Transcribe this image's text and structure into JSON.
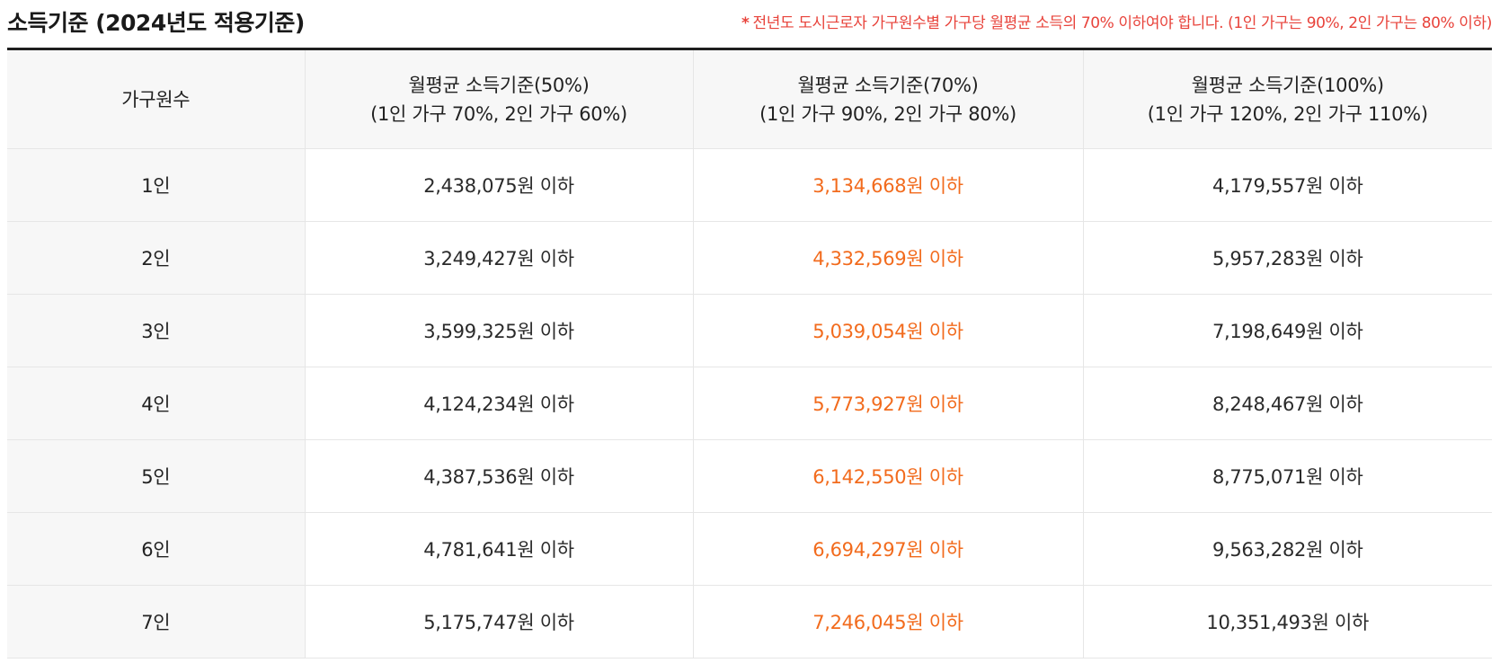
{
  "title": "소득기준 (2024년도 적용기준)",
  "note": {
    "star": "*",
    "text": "전년도 도시근로자 가구원수별 가구당 월평균 소득의 70% 이하여야 합니다. (1인 가구는 90%, 2인 가구는 80% 이하)"
  },
  "colors": {
    "note": "#e8433b",
    "highlight": "#f26b1d",
    "header_bg": "#f7f7f7",
    "rule": "#1f1f1f"
  },
  "table": {
    "headers": [
      {
        "line1": "가구원수",
        "line2": ""
      },
      {
        "line1": "월평균 소득기준(50%)",
        "line2": "(1인 가구 70%, 2인 가구 60%)"
      },
      {
        "line1": "월평균 소득기준(70%)",
        "line2": "(1인 가구 90%, 2인 가구 80%)"
      },
      {
        "line1": "월평균 소득기준(100%)",
        "line2": "(1인 가구 120%, 2인 가구 110%)"
      }
    ],
    "highlighted_column": 2,
    "rows": [
      {
        "household": "1인",
        "v50": "2,438,075원 이하",
        "v70": "3,134,668원 이하",
        "v100": "4,179,557원 이하"
      },
      {
        "household": "2인",
        "v50": "3,249,427원 이하",
        "v70": "4,332,569원 이하",
        "v100": "5,957,283원 이하"
      },
      {
        "household": "3인",
        "v50": "3,599,325원 이하",
        "v70": "5,039,054원 이하",
        "v100": "7,198,649원 이하"
      },
      {
        "household": "4인",
        "v50": "4,124,234원 이하",
        "v70": "5,773,927원 이하",
        "v100": "8,248,467원 이하"
      },
      {
        "household": "5인",
        "v50": "4,387,536원 이하",
        "v70": "6,142,550원 이하",
        "v100": "8,775,071원 이하"
      },
      {
        "household": "6인",
        "v50": "4,781,641원 이하",
        "v70": "6,694,297원 이하",
        "v100": "9,563,282원 이하"
      },
      {
        "household": "7인",
        "v50": "5,175,747원 이하",
        "v70": "7,246,045원 이하",
        "v100": "10,351,493원 이하"
      }
    ]
  }
}
